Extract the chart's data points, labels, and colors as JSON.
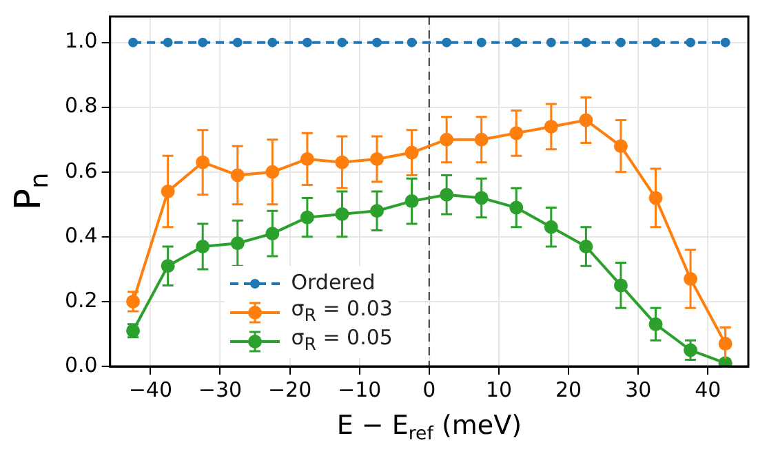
{
  "chart_data": {
    "type": "line",
    "xlabel": "E − E$_{ref}$ (meV)",
    "ylabel": "P$_{n}$",
    "x": [
      -42.5,
      -37.5,
      -32.5,
      -27.5,
      -22.5,
      -17.5,
      -12.5,
      -7.5,
      -2.5,
      2.5,
      7.5,
      12.5,
      17.5,
      22.5,
      27.5,
      32.5,
      37.5,
      42.5
    ],
    "series": [
      {
        "name": "Ordered",
        "color": "#1f77b4",
        "line_style": "dashed",
        "values": [
          1,
          1,
          1,
          1,
          1,
          1,
          1,
          1,
          1,
          1,
          1,
          1,
          1,
          1,
          1,
          1,
          1,
          1
        ]
      },
      {
        "name": "σ$_{R}$ = 0.03",
        "color": "#ff7f0e",
        "line_style": "solid",
        "values": [
          0.2,
          0.54,
          0.63,
          0.59,
          0.6,
          0.64,
          0.63,
          0.64,
          0.66,
          0.7,
          0.7,
          0.72,
          0.74,
          0.76,
          0.68,
          0.52,
          0.27,
          0.07
        ],
        "errors": [
          0.03,
          0.11,
          0.1,
          0.09,
          0.1,
          0.08,
          0.08,
          0.07,
          0.07,
          0.07,
          0.07,
          0.07,
          0.07,
          0.07,
          0.08,
          0.09,
          0.09,
          0.05
        ]
      },
      {
        "name": "σ$_{R}$ = 0.05",
        "color": "#2ca02c",
        "line_style": "solid",
        "values": [
          0.11,
          0.31,
          0.37,
          0.38,
          0.41,
          0.46,
          0.47,
          0.48,
          0.51,
          0.53,
          0.52,
          0.49,
          0.43,
          0.37,
          0.25,
          0.13,
          0.05,
          0.01
        ],
        "errors": [
          0.02,
          0.06,
          0.07,
          0.07,
          0.07,
          0.06,
          0.07,
          0.06,
          0.07,
          0.06,
          0.06,
          0.06,
          0.06,
          0.06,
          0.07,
          0.05,
          0.03,
          0.01
        ]
      }
    ],
    "xlim": [
      -45.8,
      45.8
    ],
    "ylim": [
      0,
      1.08
    ],
    "xticks": [
      {
        "value": -40,
        "label": "−40"
      },
      {
        "value": -30,
        "label": "−30"
      },
      {
        "value": -20,
        "label": "−20"
      },
      {
        "value": -10,
        "label": "−10"
      },
      0,
      10,
      20,
      30,
      40
    ],
    "yticks": [
      {
        "value": 0,
        "label": "0.0"
      },
      {
        "value": 0.2,
        "label": "0.2"
      },
      {
        "value": 0.4,
        "label": "0.4"
      },
      {
        "value": 0.6,
        "label": "0.6"
      },
      {
        "value": 0.8,
        "label": "0.8"
      },
      {
        "value": 1,
        "label": "1.0"
      }
    ],
    "ref_lines": [
      {
        "axis": "x",
        "value": 0,
        "color": "#555555",
        "line_style": "dashed"
      }
    ],
    "grid": true,
    "legend": "bottom",
    "marker": "circle"
  }
}
